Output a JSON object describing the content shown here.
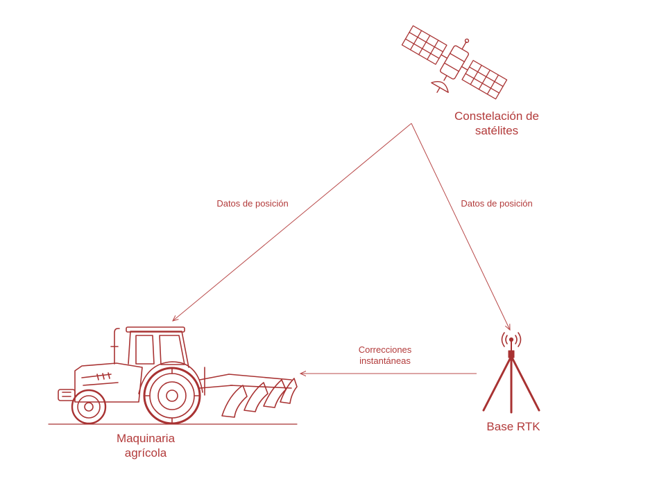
{
  "colors": {
    "accent": "#b23a3a",
    "line": "#b84848"
  },
  "nodes": {
    "satellite": {
      "label": "Constelación de\nsatélites",
      "icon": "satellite-icon"
    },
    "tractor": {
      "label": "Maquinaria\nagrícola",
      "icon": "tractor-icon"
    },
    "base": {
      "label": "Base RTK",
      "icon": "rtk-antenna-icon"
    }
  },
  "edges": {
    "sat_to_tractor": {
      "label": "Datos de posición"
    },
    "sat_to_base": {
      "label": "Datos de posición"
    },
    "base_to_tractor": {
      "label": "Correcciones\ninstantáneas"
    }
  }
}
